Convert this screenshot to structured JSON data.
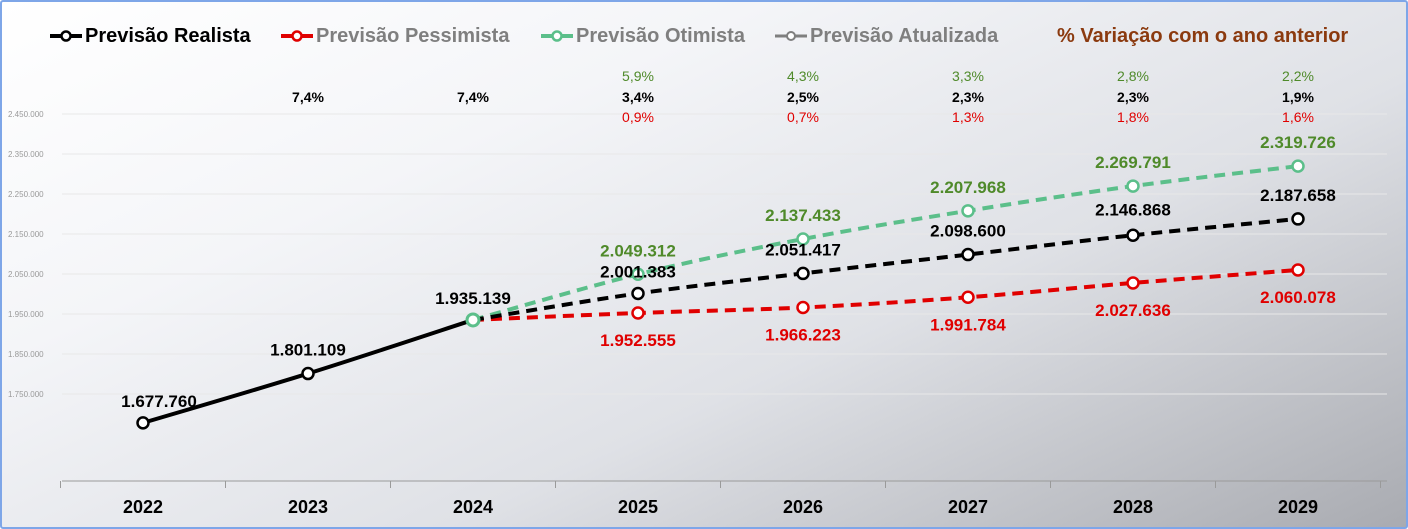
{
  "legend": [
    {
      "label": "Previsão Realista",
      "color": "#000000",
      "text_color": "#000000"
    },
    {
      "label": "Previsão Pessimista",
      "color": "#e00000",
      "text_color": "#7f7f7f"
    },
    {
      "label": "Previsão Otimista",
      "color": "#5bbf8a",
      "text_color": "#7f7f7f"
    },
    {
      "label": "Previsão Atualizada",
      "color": "#7f7f7f",
      "text_color": "#7f7f7f"
    },
    {
      "label": "% Variação com o ano anterior",
      "color": "#8b3a0f",
      "text_color": "#8b3a0f"
    }
  ],
  "colors": {
    "realista": "#000000",
    "pessimista": "#e00000",
    "otimista_line": "#5bbf8a",
    "otimista_label": "#4f8a2a",
    "marker_fill_otimista": "#ffffff",
    "gridline": "#e8e8e8"
  },
  "chart_data": {
    "type": "line",
    "categories": [
      "2022",
      "2023",
      "2024",
      "2025",
      "2026",
      "2027",
      "2028",
      "2029"
    ],
    "ylim": [
      1550000,
      2450000
    ],
    "yticks": [
      "2.450.000",
      "2.350.000",
      "2.250.000",
      "2.150.000",
      "2.050.000",
      "1.950.000",
      "1.850.000",
      "1.750.000"
    ],
    "yticks_values": [
      2450000,
      2350000,
      2250000,
      2150000,
      2050000,
      1950000,
      1850000,
      1750000
    ],
    "series": [
      {
        "name": "Previsão Realista",
        "values": [
          1677760,
          1801109,
          1935139,
          2001383,
          2051417,
          2098600,
          2146868,
          2187658
        ],
        "labels": [
          "1.677.760",
          "1.801.109",
          "1.935.139",
          "2.001.383",
          "2.051.417",
          "2.098.600",
          "2.146.868",
          "2.187.658"
        ]
      },
      {
        "name": "Previsão Pessimista",
        "values": [
          null,
          null,
          1935139,
          1952555,
          1966223,
          1991784,
          2027636,
          2060078
        ],
        "labels": [
          null,
          null,
          null,
          "1.952.555",
          "1.966.223",
          "1.991.784",
          "2.027.636",
          "2.060.078"
        ]
      },
      {
        "name": "Previsão Otimista",
        "values": [
          null,
          null,
          1935139,
          2049312,
          2137433,
          2207968,
          2269791,
          2319726
        ],
        "labels": [
          null,
          null,
          null,
          "2.049.312",
          "2.137.433",
          "2.207.968",
          "2.269.791",
          "2.319.726"
        ]
      }
    ],
    "variation": {
      "otimista": [
        null,
        null,
        null,
        "5,9%",
        "4,3%",
        "3,3%",
        "2,8%",
        "2,2%"
      ],
      "realista": [
        null,
        "7,4%",
        "7,4%",
        "3,4%",
        "2,5%",
        "2,3%",
        "2,3%",
        "1,9%"
      ],
      "pessimista": [
        null,
        null,
        null,
        "0,9%",
        "0,7%",
        "1,3%",
        "1,8%",
        "1,6%"
      ]
    }
  }
}
